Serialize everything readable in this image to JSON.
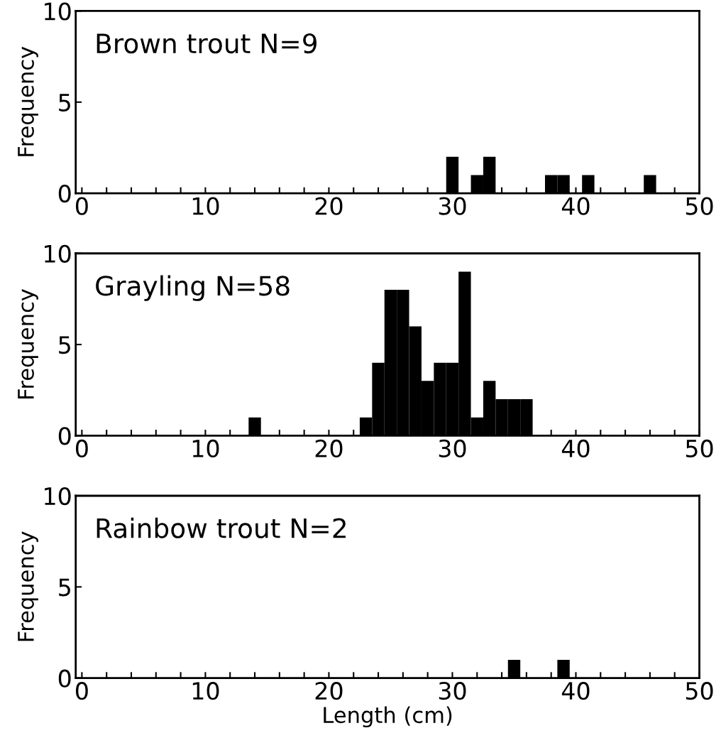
{
  "chart_data": [
    {
      "type": "histogram",
      "title": "Brown trout N=9",
      "ylabel": "Frequency",
      "color": "#000000",
      "bins": [
        -0.5,
        0.5,
        1.5,
        2.5,
        3.5,
        4.5,
        5.5,
        6.5,
        7.5,
        8.5,
        9.5,
        10.5,
        11.5,
        12.5,
        13.5,
        14.5,
        15.5,
        16.5,
        17.5,
        18.5,
        19.5,
        20.5,
        21.5,
        22.5,
        23.5,
        24.5,
        25.5,
        26.5,
        27.5,
        28.5,
        29.5,
        30.5,
        31.5,
        32.5,
        33.5,
        34.5,
        35.5,
        36.5,
        37.5,
        38.5,
        39.5,
        40.5,
        41.5,
        42.5,
        43.5,
        44.5,
        45.5,
        46.5,
        47.5,
        48.5,
        49.5
      ],
      "values": [
        0,
        0,
        0,
        0,
        0,
        0,
        0,
        0,
        0,
        0,
        0,
        0,
        0,
        0,
        0,
        0,
        0,
        0,
        0,
        0,
        0,
        0,
        0,
        0,
        0,
        0,
        0,
        0,
        0,
        0,
        2,
        0,
        1,
        2,
        0,
        0,
        0,
        0,
        1,
        1,
        0,
        1,
        0,
        0,
        0,
        0,
        1,
        0,
        0,
        0
      ],
      "xlim": [
        -0.5,
        50
      ],
      "ylim": [
        0,
        10
      ],
      "xticks": [
        0,
        {
          "value": 2,
          "label": null
        },
        {
          "value": 4,
          "label": null
        },
        {
          "value": 6,
          "label": null
        },
        {
          "value": 8,
          "label": null
        },
        10,
        {
          "value": 12,
          "label": null
        },
        {
          "value": 14,
          "label": null
        },
        {
          "value": 16,
          "label": null
        },
        {
          "value": 18,
          "label": null
        },
        20,
        {
          "value": 22,
          "label": null
        },
        {
          "value": 24,
          "label": null
        },
        {
          "value": 26,
          "label": null
        },
        {
          "value": 28,
          "label": null
        },
        30,
        {
          "value": 32,
          "label": null
        },
        {
          "value": 34,
          "label": null
        },
        {
          "value": 36,
          "label": null
        },
        {
          "value": 38,
          "label": null
        },
        40,
        {
          "value": 42,
          "label": null
        },
        {
          "value": 44,
          "label": null
        },
        {
          "value": 46,
          "label": null
        },
        {
          "value": 48,
          "label": null
        },
        50
      ],
      "yticks": [
        0,
        5,
        10
      ],
      "grid": false
    },
    {
      "type": "histogram",
      "title": "Grayling N=58",
      "ylabel": "Frequency",
      "color": "#000000",
      "bins": [
        -0.5,
        0.5,
        1.5,
        2.5,
        3.5,
        4.5,
        5.5,
        6.5,
        7.5,
        8.5,
        9.5,
        10.5,
        11.5,
        12.5,
        13.5,
        14.5,
        15.5,
        16.5,
        17.5,
        18.5,
        19.5,
        20.5,
        21.5,
        22.5,
        23.5,
        24.5,
        25.5,
        26.5,
        27.5,
        28.5,
        29.5,
        30.5,
        31.5,
        32.5,
        33.5,
        34.5,
        35.5,
        36.5,
        37.5,
        38.5,
        39.5,
        40.5,
        41.5,
        42.5,
        43.5,
        44.5,
        45.5,
        46.5,
        47.5,
        48.5,
        49.5
      ],
      "values": [
        0,
        0,
        0,
        0,
        0,
        0,
        0,
        0,
        0,
        0,
        0,
        0,
        0,
        0,
        1,
        0,
        0,
        0,
        0,
        0,
        0,
        0,
        0,
        1,
        4,
        8,
        8,
        6,
        3,
        4,
        4,
        9,
        1,
        3,
        2,
        2,
        2,
        0,
        0,
        0,
        0,
        0,
        0,
        0,
        0,
        0,
        0,
        0,
        0,
        0
      ],
      "xlim": [
        -0.5,
        50
      ],
      "ylim": [
        0,
        10
      ],
      "xticks": [
        0,
        {
          "value": 2,
          "label": null
        },
        {
          "value": 4,
          "label": null
        },
        {
          "value": 6,
          "label": null
        },
        {
          "value": 8,
          "label": null
        },
        10,
        {
          "value": 12,
          "label": null
        },
        {
          "value": 14,
          "label": null
        },
        {
          "value": 16,
          "label": null
        },
        {
          "value": 18,
          "label": null
        },
        20,
        {
          "value": 22,
          "label": null
        },
        {
          "value": 24,
          "label": null
        },
        {
          "value": 26,
          "label": null
        },
        {
          "value": 28,
          "label": null
        },
        30,
        {
          "value": 32,
          "label": null
        },
        {
          "value": 34,
          "label": null
        },
        {
          "value": 36,
          "label": null
        },
        {
          "value": 38,
          "label": null
        },
        40,
        {
          "value": 42,
          "label": null
        },
        {
          "value": 44,
          "label": null
        },
        {
          "value": 46,
          "label": null
        },
        {
          "value": 48,
          "label": null
        },
        50
      ],
      "yticks": [
        0,
        5,
        10
      ],
      "grid": false
    },
    {
      "type": "histogram",
      "title": "Rainbow trout N=2",
      "ylabel": "Frequency",
      "xlabel": "Length (cm)",
      "color": "#000000",
      "bins": [
        -0.5,
        0.5,
        1.5,
        2.5,
        3.5,
        4.5,
        5.5,
        6.5,
        7.5,
        8.5,
        9.5,
        10.5,
        11.5,
        12.5,
        13.5,
        14.5,
        15.5,
        16.5,
        17.5,
        18.5,
        19.5,
        20.5,
        21.5,
        22.5,
        23.5,
        24.5,
        25.5,
        26.5,
        27.5,
        28.5,
        29.5,
        30.5,
        31.5,
        32.5,
        33.5,
        34.5,
        35.5,
        36.5,
        37.5,
        38.5,
        39.5,
        40.5,
        41.5,
        42.5,
        43.5,
        44.5,
        45.5,
        46.5,
        47.5,
        48.5,
        49.5
      ],
      "values": [
        0,
        0,
        0,
        0,
        0,
        0,
        0,
        0,
        0,
        0,
        0,
        0,
        0,
        0,
        0,
        0,
        0,
        0,
        0,
        0,
        0,
        0,
        0,
        0,
        0,
        0,
        0,
        0,
        0,
        0,
        0,
        0,
        0,
        0,
        0,
        1,
        0,
        0,
        0,
        1,
        0,
        0,
        0,
        0,
        0,
        0,
        0,
        0,
        0,
        0
      ],
      "xlim": [
        -0.5,
        50
      ],
      "ylim": [
        0,
        10
      ],
      "xticks": [
        0,
        {
          "value": 2,
          "label": null
        },
        {
          "value": 4,
          "label": null
        },
        {
          "value": 6,
          "label": null
        },
        {
          "value": 8,
          "label": null
        },
        10,
        {
          "value": 12,
          "label": null
        },
        {
          "value": 14,
          "label": null
        },
        {
          "value": 16,
          "label": null
        },
        {
          "value": 18,
          "label": null
        },
        20,
        {
          "value": 22,
          "label": null
        },
        {
          "value": 24,
          "label": null
        },
        {
          "value": 26,
          "label": null
        },
        {
          "value": 28,
          "label": null
        },
        30,
        {
          "value": 32,
          "label": null
        },
        {
          "value": 34,
          "label": null
        },
        {
          "value": 36,
          "label": null
        },
        {
          "value": 38,
          "label": null
        },
        40,
        {
          "value": 42,
          "label": null
        },
        {
          "value": 44,
          "label": null
        },
        {
          "value": 46,
          "label": null
        },
        {
          "value": 48,
          "label": null
        },
        50
      ],
      "yticks": [
        0,
        5,
        10
      ],
      "grid": false
    }
  ]
}
